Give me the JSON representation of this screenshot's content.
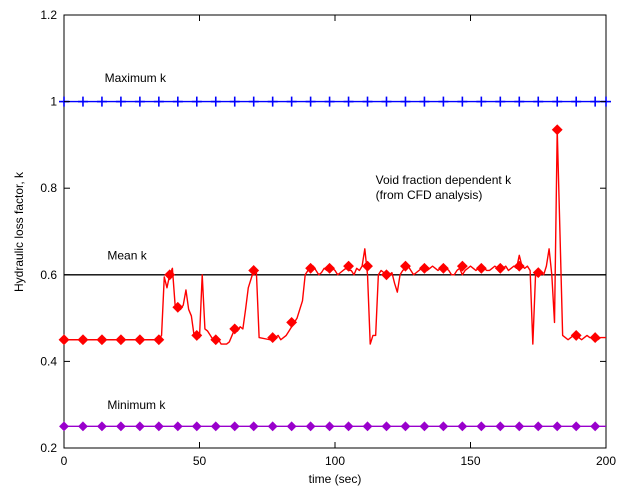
{
  "chart_data": {
    "type": "line",
    "xlabel": "time (sec)",
    "ylabel": "Hydraulic loss factor, k",
    "xlim": [
      0,
      200
    ],
    "ylim": [
      0.2,
      1.2
    ],
    "xticks": [
      0,
      50,
      100,
      150,
      200
    ],
    "yticks": [
      0.2,
      0.4,
      0.6,
      0.8,
      1.0,
      1.2
    ],
    "xtick_labels": [
      "0",
      "50",
      "100",
      "150",
      "200"
    ],
    "ytick_labels": [
      "0.2",
      "0.4",
      "0.6",
      "0.8",
      "1",
      "1.2"
    ],
    "grid": false,
    "annotations": [
      {
        "text": "Maximum k",
        "x": 15,
        "y": 1.045
      },
      {
        "text": "Mean k",
        "x": 16,
        "y": 0.635
      },
      {
        "text": "Minimum k",
        "x": 16,
        "y": 0.29
      },
      {
        "text": "Void fraction dependent k",
        "x": 115,
        "y": 0.81
      },
      {
        "text": "(from CFD analysis)",
        "x": 115,
        "y": 0.775
      }
    ],
    "series": [
      {
        "color": "#0000ff",
        "marker": "plus",
        "x": [
          0,
          200
        ],
        "y": [
          1.0,
          1.0
        ],
        "marker_x": [
          0,
          7,
          14,
          21,
          28,
          35,
          42,
          49,
          56,
          63,
          70,
          77,
          84,
          91,
          98,
          105,
          112,
          119,
          126,
          133,
          140,
          147,
          154,
          161,
          168,
          175,
          182,
          189,
          196,
          200
        ]
      },
      {
        "color": "#000000",
        "marker": "none",
        "x": [
          0,
          200
        ],
        "y": [
          0.6,
          0.6
        ]
      },
      {
        "color": "#9900cc",
        "marker": "diamond",
        "x": [
          0,
          200
        ],
        "y": [
          0.25,
          0.25
        ],
        "marker_x": [
          0,
          7,
          14,
          21,
          28,
          35,
          42,
          49,
          56,
          63,
          70,
          77,
          84,
          91,
          98,
          105,
          112,
          119,
          126,
          133,
          140,
          147,
          154,
          161,
          168,
          175,
          182,
          189,
          196
        ]
      },
      {
        "color": "#ff0000",
        "marker": "diamond",
        "x": [
          0,
          35,
          36,
          37,
          38,
          39,
          40,
          41,
          42,
          43,
          44,
          45,
          46,
          47,
          48,
          49,
          50,
          51,
          52,
          53,
          54,
          55,
          56,
          57,
          58,
          59,
          60,
          61,
          62,
          63,
          64,
          65,
          66,
          67,
          68,
          69,
          70,
          71,
          72,
          76,
          77,
          78,
          79,
          80,
          81,
          82,
          83,
          84,
          85,
          86,
          87,
          88,
          89,
          90,
          91,
          92,
          93,
          94,
          95,
          96,
          97,
          98,
          99,
          100,
          101,
          102,
          103,
          104,
          105,
          106,
          107,
          108,
          109,
          110,
          111,
          112,
          113,
          114,
          115,
          116,
          117,
          118,
          119,
          120,
          121,
          122,
          123,
          124,
          125,
          126,
          127,
          128,
          129,
          130,
          131,
          132,
          133,
          134,
          135,
          136,
          137,
          138,
          139,
          140,
          141,
          142,
          143,
          144,
          145,
          146,
          147,
          148,
          149,
          150,
          151,
          152,
          153,
          154,
          155,
          156,
          157,
          158,
          159,
          160,
          161,
          162,
          163,
          164,
          165,
          166,
          167,
          168,
          169,
          170,
          171,
          172,
          173,
          174,
          175,
          176,
          177,
          178,
          179,
          180,
          181,
          182,
          183,
          184,
          185,
          186,
          187,
          188,
          189,
          190,
          191,
          192,
          193,
          194,
          195,
          196,
          197,
          198,
          199,
          200
        ],
        "y": [
          0.45,
          0.45,
          0.46,
          0.595,
          0.57,
          0.6,
          0.615,
          0.53,
          0.525,
          0.52,
          0.53,
          0.565,
          0.52,
          0.505,
          0.46,
          0.46,
          0.455,
          0.6,
          0.475,
          0.47,
          0.46,
          0.45,
          0.455,
          0.45,
          0.44,
          0.44,
          0.44,
          0.445,
          0.46,
          0.475,
          0.47,
          0.48,
          0.475,
          0.52,
          0.57,
          0.59,
          0.61,
          0.605,
          0.455,
          0.45,
          0.45,
          0.455,
          0.46,
          0.45,
          0.455,
          0.46,
          0.47,
          0.48,
          0.49,
          0.5,
          0.52,
          0.54,
          0.6,
          0.61,
          0.615,
          0.62,
          0.61,
          0.6,
          0.605,
          0.615,
          0.61,
          0.61,
          0.615,
          0.61,
          0.6,
          0.605,
          0.61,
          0.615,
          0.61,
          0.61,
          0.6,
          0.615,
          0.61,
          0.62,
          0.66,
          0.6,
          0.44,
          0.46,
          0.46,
          0.6,
          0.61,
          0.605,
          0.6,
          0.6,
          0.605,
          0.58,
          0.56,
          0.6,
          0.61,
          0.615,
          0.62,
          0.61,
          0.6,
          0.605,
          0.61,
          0.615,
          0.615,
          0.61,
          0.615,
          0.62,
          0.615,
          0.61,
          0.615,
          0.62,
          0.615,
          0.61,
          0.6,
          0.6,
          0.61,
          0.615,
          0.6,
          0.61,
          0.615,
          0.62,
          0.615,
          0.61,
          0.615,
          0.62,
          0.615,
          0.61,
          0.61,
          0.615,
          0.62,
          0.615,
          0.61,
          0.615,
          0.62,
          0.61,
          0.615,
          0.62,
          0.615,
          0.645,
          0.62,
          0.615,
          0.62,
          0.61,
          0.44,
          0.6,
          0.61,
          0.605,
          0.6,
          0.62,
          0.66,
          0.6,
          0.49,
          0.935,
          0.7,
          0.46,
          0.455,
          0.45,
          0.455,
          0.46,
          0.455,
          0.455,
          0.45,
          0.455,
          0.46,
          0.455,
          0.455,
          0.45,
          0.45,
          0.455,
          0.455,
          0.455
        ],
        "marker_points": [
          [
            0,
            0.45
          ],
          [
            7,
            0.45
          ],
          [
            14,
            0.45
          ],
          [
            21,
            0.45
          ],
          [
            28,
            0.45
          ],
          [
            35,
            0.45
          ],
          [
            39,
            0.6
          ],
          [
            42,
            0.525
          ],
          [
            49,
            0.46
          ],
          [
            56,
            0.45
          ],
          [
            63,
            0.475
          ],
          [
            70,
            0.61
          ],
          [
            77,
            0.455
          ],
          [
            84,
            0.49
          ],
          [
            91,
            0.615
          ],
          [
            98,
            0.615
          ],
          [
            105,
            0.62
          ],
          [
            112,
            0.62
          ],
          [
            119,
            0.6
          ],
          [
            126,
            0.62
          ],
          [
            133,
            0.615
          ],
          [
            140,
            0.615
          ],
          [
            147,
            0.62
          ],
          [
            154,
            0.615
          ],
          [
            161,
            0.615
          ],
          [
            168,
            0.62
          ],
          [
            175,
            0.605
          ],
          [
            182,
            0.935
          ],
          [
            189,
            0.46
          ],
          [
            196,
            0.455
          ]
        ]
      }
    ]
  }
}
